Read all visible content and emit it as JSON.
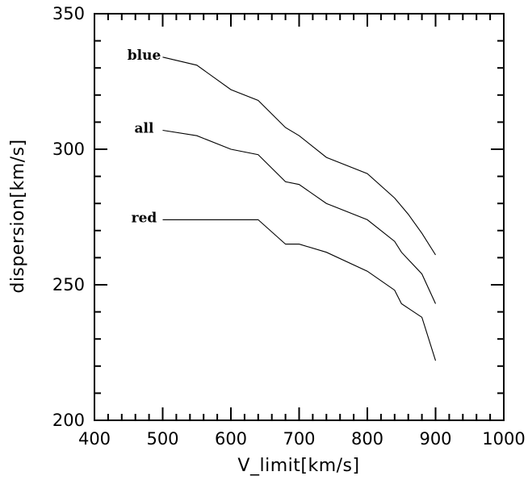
{
  "chart_data": {
    "type": "line",
    "title": "",
    "xlabel": "V_limit[km/s]",
    "ylabel": "dispersion[km/s]",
    "xlim": [
      400,
      1000
    ],
    "ylim": [
      200,
      350
    ],
    "xticks": [
      400,
      500,
      600,
      700,
      800,
      900,
      1000
    ],
    "yticks": [
      200,
      250,
      300,
      350
    ],
    "x_minor_step": 20,
    "y_minor_step": 10,
    "grid": false,
    "series": [
      {
        "name": "blue",
        "x": [
          500,
          550,
          600,
          640,
          680,
          700,
          740,
          800,
          840,
          860,
          880,
          900
        ],
        "y": [
          334,
          331,
          322,
          318,
          308,
          305,
          297,
          291,
          282,
          276,
          269,
          261
        ]
      },
      {
        "name": "all",
        "x": [
          500,
          550,
          600,
          640,
          680,
          700,
          740,
          800,
          840,
          850,
          880,
          900
        ],
        "y": [
          307,
          305,
          300,
          298,
          288,
          287,
          280,
          274,
          266,
          262,
          254,
          243
        ]
      },
      {
        "name": "red",
        "x": [
          500,
          550,
          600,
          640,
          680,
          700,
          740,
          800,
          840,
          850,
          880,
          900
        ],
        "y": [
          274,
          274,
          274,
          274,
          265,
          265,
          262,
          255,
          248,
          243,
          238,
          222
        ]
      }
    ]
  }
}
